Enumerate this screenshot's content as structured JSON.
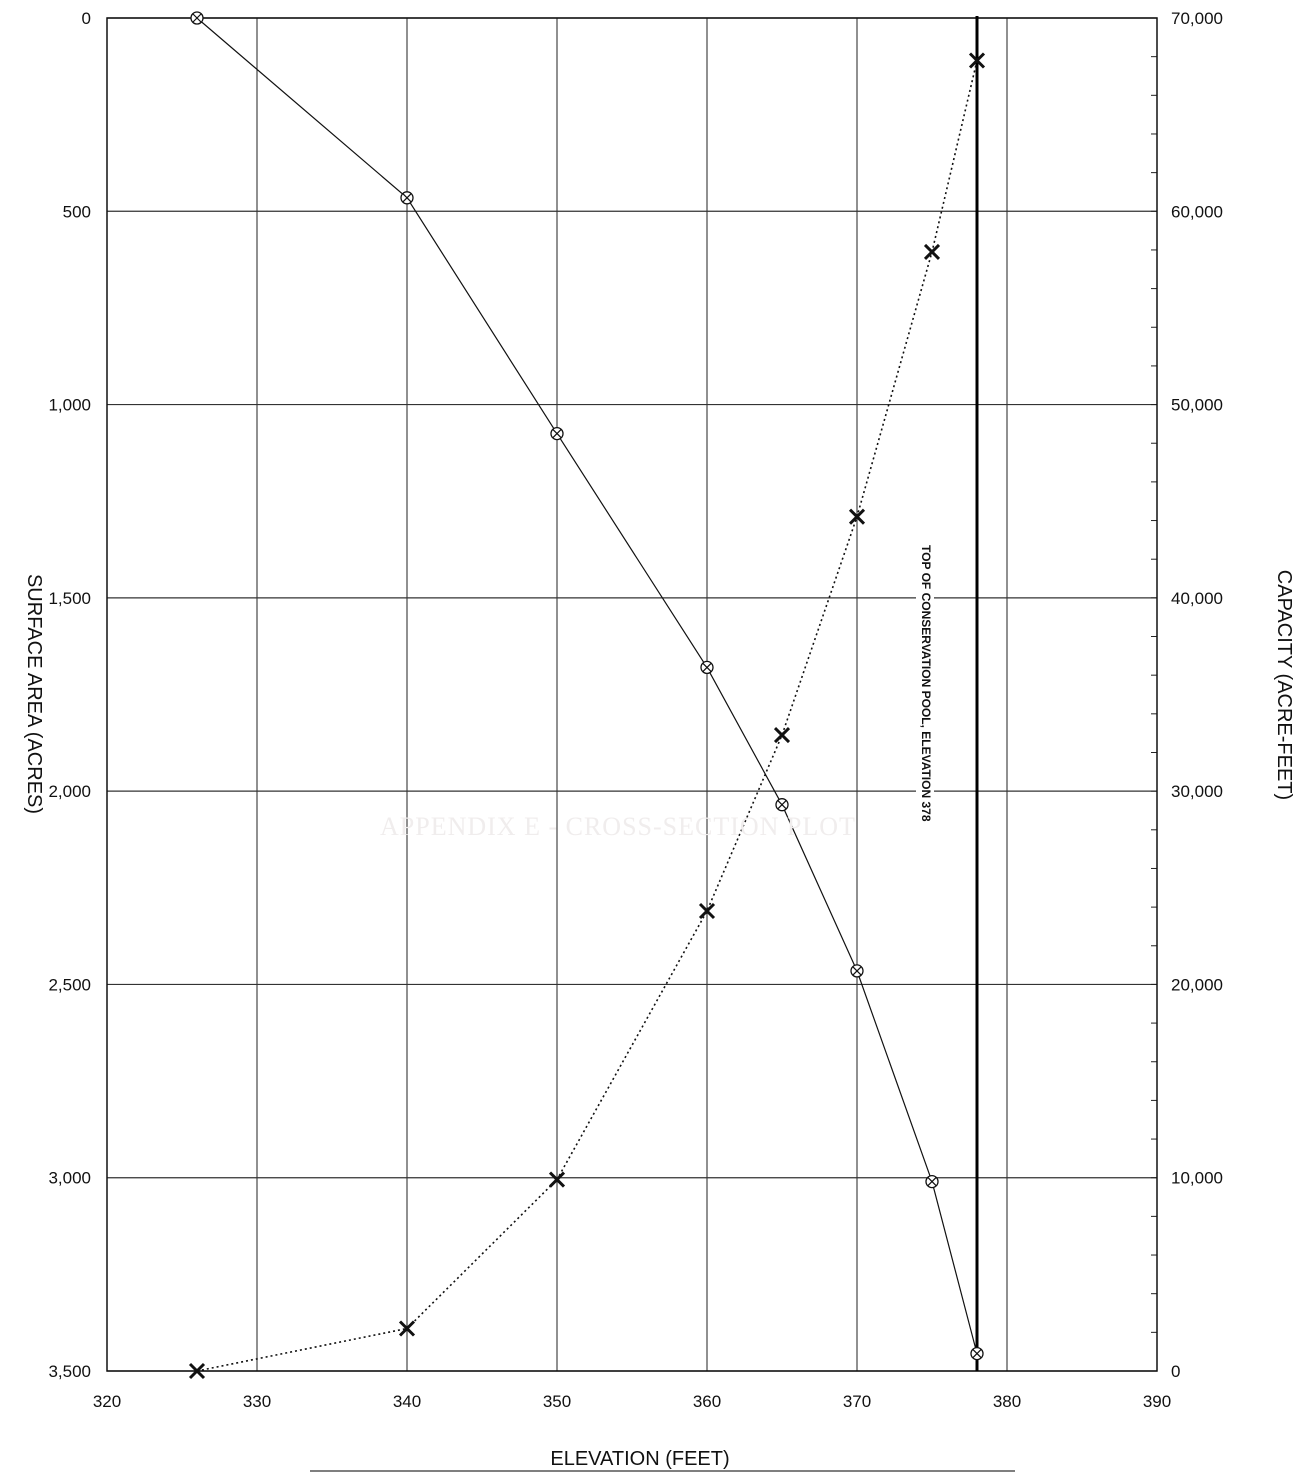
{
  "chart_data": {
    "type": "line",
    "xlabel": "ELEVATION (FEET)",
    "ylabel_left": "SURFACE AREA (ACRES)",
    "ylabel_right": "CAPACITY (ACRE-FEET)",
    "xlim": [
      320,
      390
    ],
    "ylim_left": [
      0,
      3500
    ],
    "ylim_left_inverted": true,
    "ylim_right": [
      0,
      70000
    ],
    "x_ticks": [
      320,
      330,
      340,
      350,
      360,
      370,
      380,
      390
    ],
    "y_left_ticks": [
      "0",
      "500",
      "1,000",
      "1,500",
      "2,000",
      "2,500",
      "3,000",
      "3,500"
    ],
    "y_left_tick_values": [
      0,
      500,
      1000,
      1500,
      2000,
      2500,
      3000,
      3500
    ],
    "y_right_ticks": [
      "70,000",
      "60,000",
      "50,000",
      "40,000",
      "30,000",
      "20,000",
      "10,000",
      "0"
    ],
    "y_right_tick_values": [
      70000,
      60000,
      50000,
      40000,
      30000,
      20000,
      10000,
      0
    ],
    "grid": true,
    "series": [
      {
        "axis": "left",
        "style": "solid",
        "marker": "circle-x",
        "x": [
          326,
          340,
          350,
          360,
          365,
          370,
          375,
          378
        ],
        "y": [
          0,
          465,
          1075,
          1680,
          2035,
          2465,
          3010,
          3455
        ]
      },
      {
        "axis": "right",
        "style": "dotted",
        "marker": "x",
        "x": [
          326,
          340,
          350,
          360,
          365,
          370,
          375,
          378
        ],
        "y": [
          0,
          2200,
          9900,
          23800,
          32900,
          44200,
          57900,
          67800
        ]
      }
    ],
    "reference_line": {
      "x": 378,
      "label": "TOP OF CONSERVATION  POOL, ELEVATION 378"
    }
  },
  "background_text": "APPENDIX E - CROSS-SECTION PLOT"
}
